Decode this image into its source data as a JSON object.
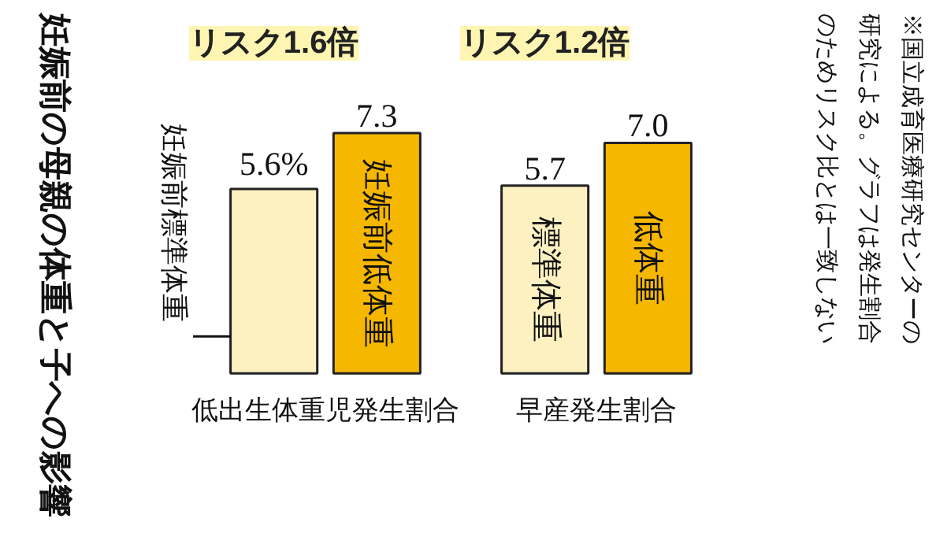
{
  "chart_data": {
    "type": "bar",
    "title": "妊娠前の母親の体重と子への影響",
    "categories": [
      "低出生体重児発生割合",
      "早産発生割合"
    ],
    "series": [
      {
        "color": "#fdf1c2",
        "values": [
          5.6,
          5.7
        ],
        "value_labels": [
          "5.6%",
          "5.7"
        ]
      },
      {
        "color": "#f6b700",
        "values": [
          7.3,
          7.0
        ],
        "value_labels": [
          "7.3",
          "7.0"
        ]
      }
    ],
    "annotations": [
      "リスク1.6倍",
      "リスク1.2倍",
      "妊娠前標準体重",
      "妊娠前低体重",
      "標準体重",
      "低体重",
      "※国立成育医療研究センターの研究による。グラフは発生割合のためリスク比とは一致しない"
    ],
    "grid": false
  }
}
